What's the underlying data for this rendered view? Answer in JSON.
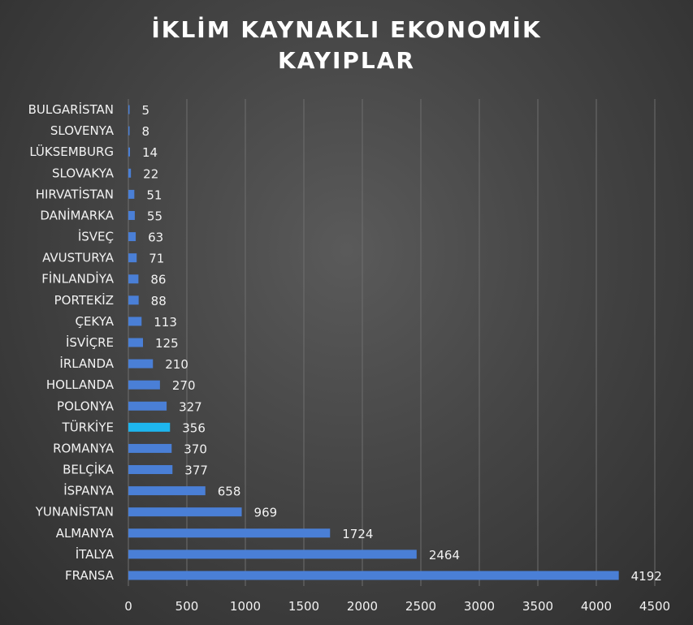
{
  "chart_data": {
    "type": "bar",
    "orientation": "horizontal",
    "title_lines": [
      "İKLİM KAYNAKLI EKONOMİK",
      "KAYIPLAR"
    ],
    "categories": [
      "BULGARİSTAN",
      "SLOVENYA",
      "LÜKSEMBURG",
      "SLOVAKYA",
      "HIRVATİSTAN",
      "DANİMARKA",
      "İSVEÇ",
      "AVUSTURYA",
      "FİNLANDİYA",
      "PORTEKİZ",
      "ÇEKYA",
      "İSVİÇRE",
      "İRLANDA",
      "HOLLANDA",
      "POLONYA",
      "TÜRKİYE",
      "ROMANYA",
      "BELÇİKA",
      "İSPANYA",
      "YUNANİSTAN",
      "ALMANYA",
      "İTALYA",
      "FRANSA"
    ],
    "values": [
      5,
      8,
      14,
      22,
      51,
      55,
      63,
      71,
      86,
      88,
      113,
      125,
      210,
      270,
      327,
      356,
      370,
      377,
      658,
      969,
      1724,
      2464,
      4192
    ],
    "xlim": [
      0,
      4500
    ],
    "xticks": [
      0,
      500,
      1000,
      1500,
      2000,
      2500,
      3000,
      3500,
      4000,
      4500
    ],
    "grid": true,
    "colors": {
      "bar": "#4a7fd6",
      "highlight": "#1eb6ee",
      "grid": "#6e6e6e",
      "text": "#f2f2f2"
    },
    "highlight_category": "TÜRKİYE"
  }
}
